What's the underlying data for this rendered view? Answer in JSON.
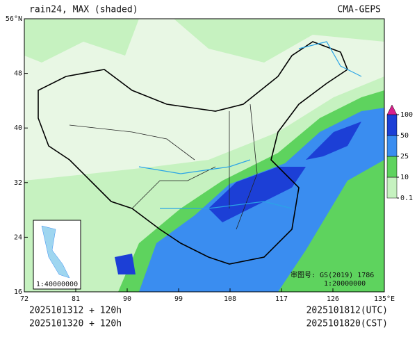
{
  "header": {
    "title": "rain24, MAX (shaded)",
    "source": "CMA-GEPS"
  },
  "map": {
    "lon_ticks": [
      72,
      81,
      90,
      99,
      108,
      117,
      126,
      {
        "value": 135,
        "label": "135°E"
      }
    ],
    "lat_ticks": [
      16,
      24,
      32,
      40,
      48,
      {
        "value": 56,
        "label": "56°N"
      }
    ],
    "lon_range": [
      72,
      135
    ],
    "lat_range": [
      16,
      56
    ]
  },
  "colorbar": {
    "levels": [
      0.1,
      10,
      25,
      50,
      100
    ],
    "colors": [
      "#c6f2c0",
      "#5ed35e",
      "#3a8df0",
      "#1c3fd6"
    ],
    "over_color": "#d8208c"
  },
  "inset": {
    "scale": "1:40000000"
  },
  "approval": {
    "label": "审图号: GS(2019) 1786",
    "scale": "1:20000000"
  },
  "footer": {
    "init_utc": "2025101312 + 120h",
    "init_cst": "2025101320 + 120h",
    "valid_utc": "2025101812(UTC)",
    "valid_cst": "2025101820(CST)"
  }
}
